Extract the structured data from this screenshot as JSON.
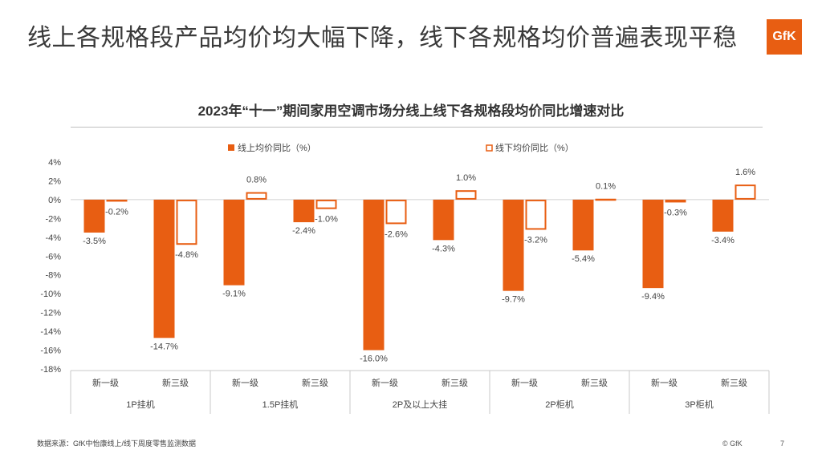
{
  "headline": "线上各规格段产品均价均大幅下降，线下各规格均价普遍表现平稳",
  "logo_text": "GfK",
  "footer": {
    "source": "数据来源：GfK中怡康线上/线下周度零售监测数据",
    "copyright": "© GfK",
    "page": "7"
  },
  "colors": {
    "online": "#e85e12",
    "offline_border": "#e85e12",
    "offline_fill": "#ffffff",
    "logo": "#e85e12"
  },
  "chart_data": {
    "type": "bar",
    "title": "2023年“十一”期间家用空调市场分线上线下各规格段均价同比增速对比",
    "legend_position": "top",
    "ylim": [
      -18,
      4
    ],
    "yticks": [
      "4%",
      "2%",
      "0%",
      "-2%",
      "-4%",
      "-6%",
      "-8%",
      "-10%",
      "-12%",
      "-14%",
      "-16%",
      "-18%"
    ],
    "grid": false,
    "groups": [
      "1P挂机",
      "1.5P挂机",
      "2P及以上大挂",
      "2P柜机",
      "3P柜机"
    ],
    "categories": [
      "新一级",
      "新三级",
      "新一级",
      "新三级",
      "新一级",
      "新三级",
      "新一级",
      "新三级",
      "新一级",
      "新三级"
    ],
    "series": [
      {
        "name": "线上均价同比（%）",
        "values": [
          -3.5,
          -14.7,
          -9.1,
          -2.4,
          -16.0,
          -4.3,
          -9.7,
          -5.4,
          -9.4,
          -3.4
        ],
        "labels": [
          "-3.5%",
          "-14.7%",
          "-9.1%",
          "-2.4%",
          "-16.0%",
          "-4.3%",
          "-9.7%",
          "-5.4%",
          "-9.4%",
          "-3.4%"
        ]
      },
      {
        "name": "线下均价同比（%）",
        "values": [
          -0.2,
          -4.8,
          0.8,
          -1.0,
          -2.6,
          1.0,
          -3.2,
          0.1,
          -0.3,
          1.6
        ],
        "labels": [
          "-0.2%",
          "-4.8%",
          "0.8%",
          "-1.0%",
          "-2.6%",
          "1.0%",
          "-3.2%",
          "0.1%",
          "-0.3%",
          "1.6%"
        ]
      }
    ]
  }
}
